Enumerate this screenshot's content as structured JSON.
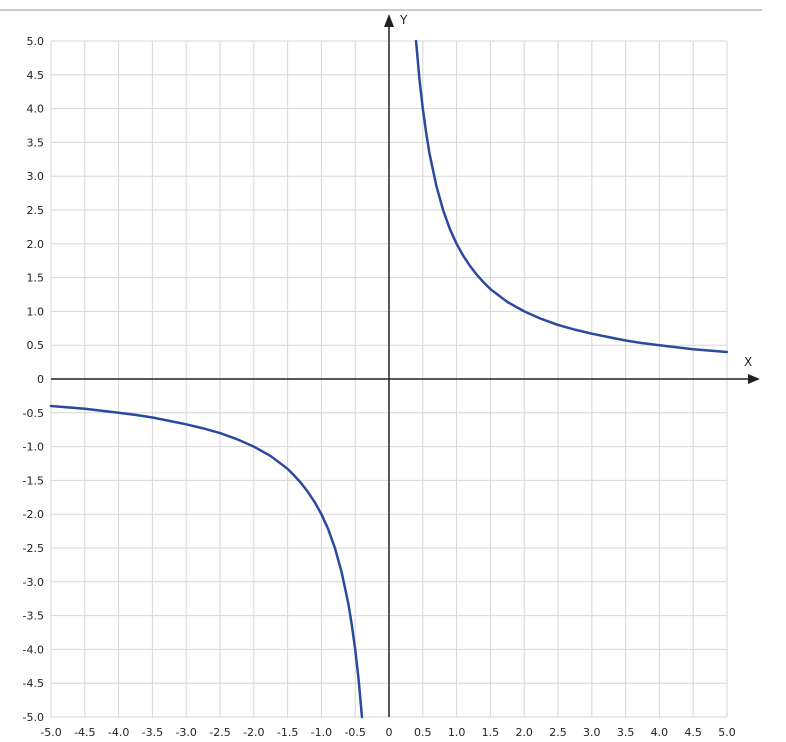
{
  "chart_data": {
    "type": "line",
    "title": "",
    "xlabel": "X",
    "ylabel": "Y",
    "xlim": [
      -5.0,
      5.0
    ],
    "ylim": [
      -5.0,
      5.0
    ],
    "grid": true,
    "x_ticks": [
      -5.0,
      -4.5,
      -4.0,
      -3.5,
      -3.0,
      -2.5,
      -2.0,
      -1.5,
      -1.0,
      -0.5,
      0,
      0.5,
      1.0,
      1.5,
      2.0,
      2.5,
      3.0,
      3.5,
      4.0,
      4.5,
      5.0
    ],
    "x_tick_labels": [
      "-5.0",
      "-4.5",
      "-4.0",
      "-3.5",
      "-3.0",
      "-2.5",
      "-2.0",
      "-1.5",
      "-1.0",
      "-0.5",
      "0",
      "0.5",
      "1.0",
      "1.5",
      "2.0",
      "2.5",
      "3.0",
      "3.5",
      "4.0",
      "4.5",
      "5.0"
    ],
    "y_ticks": [
      5.0,
      4.5,
      4.0,
      3.5,
      3.0,
      2.5,
      2.0,
      1.5,
      1.0,
      0.5,
      0,
      -0.5,
      -1.0,
      -1.5,
      -2.0,
      -2.5,
      -3.0,
      -3.5,
      -4.0,
      -4.5,
      -5.0
    ],
    "y_tick_labels": [
      "5.0",
      "4.5",
      "4.0",
      "3.5",
      "3.0",
      "2.5",
      "2.0",
      "1.5",
      "1.0",
      "0.5",
      "0",
      "-0.5",
      "-1.0",
      "-1.5",
      "-2.0",
      "-2.5",
      "-3.0",
      "-3.5",
      "-4.0",
      "-4.5",
      "-5.0"
    ],
    "series": [
      {
        "color": "#2a4a9e",
        "x": [
          0.4,
          0.45,
          0.5,
          0.55,
          0.6,
          0.7,
          0.8,
          0.9,
          1.0,
          1.1,
          1.2,
          1.3,
          1.4,
          1.5,
          1.75,
          2.0,
          2.25,
          2.5,
          2.75,
          3.0,
          3.25,
          3.5,
          3.75,
          4.0,
          4.25,
          4.5,
          4.75,
          5.0
        ],
        "y": [
          5.0,
          4.44,
          4.0,
          3.64,
          3.33,
          2.86,
          2.5,
          2.22,
          2.0,
          1.82,
          1.67,
          1.54,
          1.43,
          1.33,
          1.14,
          1.0,
          0.89,
          0.8,
          0.73,
          0.67,
          0.62,
          0.57,
          0.53,
          0.5,
          0.47,
          0.44,
          0.42,
          0.4
        ]
      },
      {
        "color": "#2a4a9e",
        "x": [
          -5.0,
          -4.75,
          -4.5,
          -4.25,
          -4.0,
          -3.75,
          -3.5,
          -3.25,
          -3.0,
          -2.75,
          -2.5,
          -2.25,
          -2.0,
          -1.75,
          -1.5,
          -1.4,
          -1.3,
          -1.2,
          -1.1,
          -1.0,
          -0.9,
          -0.8,
          -0.7,
          -0.6,
          -0.55,
          -0.5,
          -0.45,
          -0.4
        ],
        "y": [
          -0.4,
          -0.42,
          -0.44,
          -0.47,
          -0.5,
          -0.53,
          -0.57,
          -0.62,
          -0.67,
          -0.73,
          -0.8,
          -0.89,
          -1.0,
          -1.14,
          -1.33,
          -1.43,
          -1.54,
          -1.67,
          -1.82,
          -2.0,
          -2.22,
          -2.5,
          -2.86,
          -3.33,
          -3.64,
          -4.0,
          -4.44,
          -5.0
        ]
      }
    ]
  }
}
